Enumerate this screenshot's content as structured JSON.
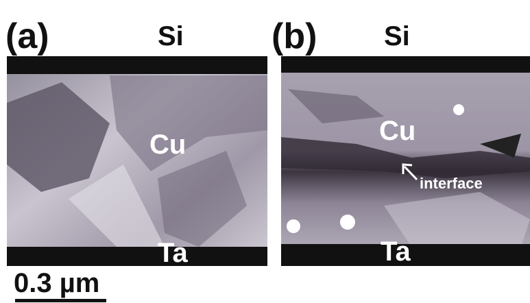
{
  "panels": [
    {
      "label": "(a)",
      "top_layer": "Si",
      "middle_layer": "Cu",
      "bottom_layer": "Ta"
    },
    {
      "label": "(b)",
      "top_layer": "Si",
      "middle_layer": "Cu",
      "annotation": "interface",
      "bottom_layer": "Ta"
    }
  ],
  "scale_bar": {
    "label": "0.3 µm"
  }
}
